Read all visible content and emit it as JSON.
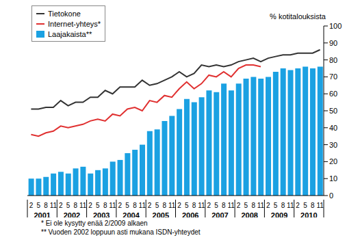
{
  "chart_data": {
    "type": "bar",
    "y_label": "% kotitalouksista",
    "categories": [
      "2",
      "5",
      "8",
      "11",
      "2",
      "5",
      "8",
      "11",
      "2",
      "5",
      "8",
      "11",
      "2",
      "5",
      "8",
      "11",
      "2",
      "5",
      "8",
      "11",
      "2",
      "5",
      "8",
      "11",
      "2",
      "5",
      "8",
      "11",
      "2",
      "5",
      "8",
      "11",
      "2",
      "5",
      "8",
      "11",
      "2",
      "5",
      "8",
      "11"
    ],
    "year_labels": [
      "2001",
      "2002",
      "2003",
      "2004",
      "2005",
      "2006",
      "2007",
      "2008",
      "2009",
      "2010"
    ],
    "series": [
      {
        "name": "Tietokone",
        "type": "line",
        "color": "#333333",
        "values": [
          51,
          51,
          52,
          52,
          56,
          53,
          55,
          55,
          58,
          58,
          62,
          60,
          64,
          64,
          64,
          68,
          65,
          66,
          68,
          70,
          73,
          70,
          72,
          77,
          76,
          77,
          76,
          77,
          79,
          80,
          81,
          79,
          81,
          82,
          83,
          83,
          84,
          84,
          84,
          86
        ]
      },
      {
        "name": "Internet-yhteys*",
        "type": "line",
        "color": "#e03030",
        "values": [
          36,
          35,
          37,
          38,
          41,
          40,
          41,
          42,
          44,
          45,
          44,
          48,
          47,
          51,
          52,
          50,
          56,
          55,
          59,
          58,
          63,
          67,
          63,
          66,
          71,
          70,
          73,
          70,
          75,
          77,
          77,
          76,
          null,
          null,
          null,
          null,
          null,
          null,
          null,
          null
        ]
      },
      {
        "name": "Laajakaista**",
        "type": "bar",
        "color": "#1ba1e2",
        "values": [
          10,
          10,
          11,
          13,
          14,
          13,
          16,
          17,
          13,
          15,
          16,
          20,
          21,
          25,
          27,
          30,
          38,
          39,
          44,
          47,
          51,
          57,
          55,
          58,
          62,
          61,
          66,
          62,
          66,
          69,
          70,
          69,
          70,
          73,
          75,
          74,
          75,
          76,
          75,
          76
        ]
      }
    ],
    "ylim": [
      0,
      100
    ],
    "yticks": [
      0,
      10,
      20,
      30,
      40,
      50,
      60,
      70,
      80,
      90,
      100
    ],
    "grid": false,
    "legend": "upper left",
    "notes": [
      "* Ei ole kysytty enää 2/2009 alkaen",
      "** Vuoden 2002 loppuun asti mukana ISDN-yhteydet"
    ]
  }
}
